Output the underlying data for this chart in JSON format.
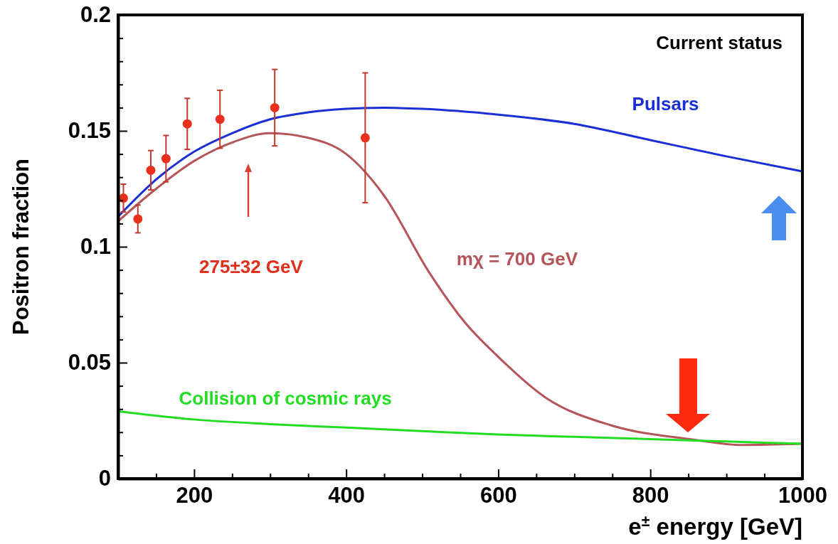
{
  "chart_data": {
    "type": "line",
    "xlabel": "e$^{±}$ energy [GeV]",
    "ylabel": "Positron fraction",
    "xlim": [
      100,
      1000
    ],
    "ylim": [
      0,
      0.2
    ],
    "xticks": [
      {
        "value": 100,
        "label": null
      },
      {
        "value": 150,
        "label": null
      },
      200,
      {
        "value": 250,
        "label": null
      },
      {
        "value": 300,
        "label": null
      },
      {
        "value": 350,
        "label": null
      },
      400,
      {
        "value": 450,
        "label": null
      },
      {
        "value": 500,
        "label": null
      },
      {
        "value": 550,
        "label": null
      },
      600,
      {
        "value": 650,
        "label": null
      },
      {
        "value": 700,
        "label": null
      },
      {
        "value": 750,
        "label": null
      },
      800,
      {
        "value": 850,
        "label": null
      },
      {
        "value": 900,
        "label": null
      },
      {
        "value": 950,
        "label": null
      },
      1000
    ],
    "yticks": [
      0,
      {
        "value": 0.01,
        "label": null
      },
      {
        "value": 0.02,
        "label": null
      },
      {
        "value": 0.03,
        "label": null
      },
      {
        "value": 0.04,
        "label": null
      },
      0.05,
      {
        "value": 0.06,
        "label": null
      },
      {
        "value": 0.07,
        "label": null
      },
      {
        "value": 0.08,
        "label": null
      },
      {
        "value": 0.09,
        "label": null
      },
      0.1,
      {
        "value": 0.11,
        "label": null
      },
      {
        "value": 0.12,
        "label": null
      },
      {
        "value": 0.13,
        "label": null
      },
      {
        "value": 0.14,
        "label": null
      },
      0.15,
      {
        "value": 0.16,
        "label": null
      },
      {
        "value": 0.17,
        "label": null
      },
      {
        "value": 0.18,
        "label": null
      },
      {
        "value": 0.19,
        "label": null
      },
      0.2
    ],
    "grid": false,
    "series": [
      {
        "name": "Pulsars",
        "color": "#1a2fd6",
        "marker": "none",
        "x": [
          100,
          150,
          200,
          250,
          300,
          350,
          400,
          450,
          500,
          600,
          700,
          800,
          900,
          1000
        ],
        "values": [
          0.113,
          0.129,
          0.141,
          0.149,
          0.155,
          0.158,
          0.1595,
          0.16,
          0.1595,
          0.157,
          0.153,
          0.146,
          0.139,
          0.1325
        ]
      },
      {
        "name": "mχ = 700 GeV",
        "color": "#b5555a",
        "marker": "none",
        "x": [
          100,
          150,
          200,
          250,
          300,
          350,
          400,
          450,
          509,
          557,
          600,
          662,
          748,
          852,
          921,
          998
        ],
        "values": [
          0.111,
          0.125,
          0.137,
          0.145,
          0.149,
          0.147,
          0.14,
          0.122,
          0.089,
          0.067,
          0.0525,
          0.035,
          0.023,
          0.017,
          0.0145,
          0.015
        ]
      },
      {
        "name": "Collision of cosmic rays",
        "color": "#22dd22",
        "marker": "none",
        "x": [
          100,
          200,
          300,
          400,
          500,
          600,
          700,
          800,
          900,
          1000
        ],
        "values": [
          0.029,
          0.0255,
          0.0235,
          0.022,
          0.0205,
          0.019,
          0.018,
          0.017,
          0.016,
          0.015
        ]
      },
      {
        "type": "scatter",
        "color": "#e8301c",
        "marker": "circle",
        "x": [
          107,
          126,
          143,
          163,
          191,
          234,
          306,
          425
        ],
        "values": [
          0.121,
          0.112,
          0.133,
          0.138,
          0.153,
          0.155,
          0.16,
          0.147
        ],
        "errors": [
          0.006,
          0.006,
          0.0085,
          0.01,
          0.011,
          0.0125,
          0.0165,
          0.028
        ]
      }
    ],
    "annotations": [
      "Current status",
      "275±32 GeV"
    ]
  }
}
